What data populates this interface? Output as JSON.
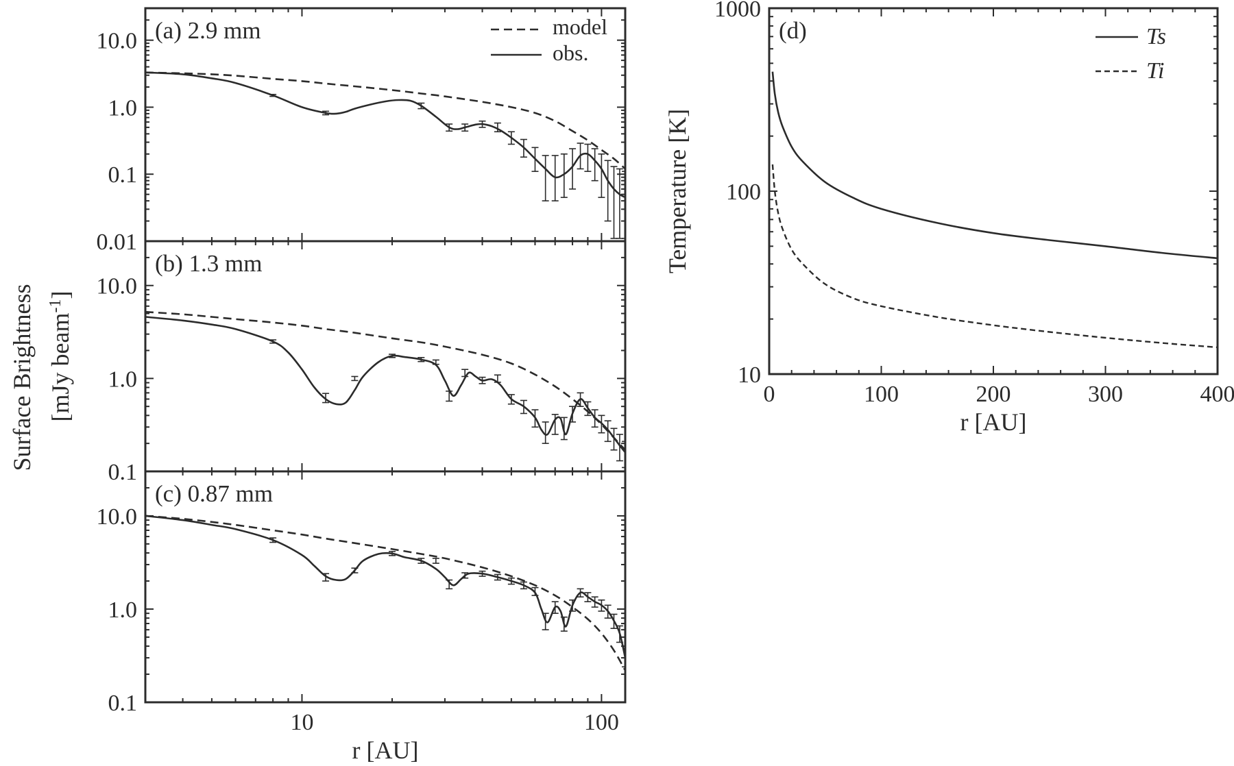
{
  "chart_data": [
    {
      "type": "line",
      "panel_label": "(a) 2.9 mm",
      "xscale": "log",
      "yscale": "log",
      "xlim": [
        3,
        120
      ],
      "ylim": [
        0.01,
        30
      ],
      "ytick_labels": [
        "10.0",
        "1.0",
        "0.1",
        "0.01"
      ],
      "ytick_values": [
        10,
        1,
        0.1,
        0.01
      ],
      "legend": {
        "position": "top-right",
        "entries": [
          "model",
          "obs."
        ]
      },
      "series": [
        {
          "name": "model",
          "style": "dashed",
          "x": [
            3,
            4,
            5,
            6,
            8,
            10,
            12,
            15,
            20,
            25,
            30,
            40,
            50,
            60,
            70,
            80,
            90,
            100,
            110,
            120
          ],
          "y": [
            3.3,
            3.2,
            3.1,
            2.95,
            2.65,
            2.45,
            2.25,
            2.05,
            1.8,
            1.6,
            1.45,
            1.2,
            1.0,
            0.82,
            0.62,
            0.44,
            0.32,
            0.23,
            0.17,
            0.12
          ]
        },
        {
          "name": "obs.",
          "style": "solid",
          "x": [
            3,
            4,
            5,
            6,
            8,
            10,
            12,
            13,
            14,
            15,
            17,
            19,
            21,
            23,
            25,
            28,
            31,
            33,
            35,
            38,
            40,
            43,
            46,
            50,
            55,
            60,
            65,
            70,
            75,
            80,
            85,
            90,
            95,
            100,
            105,
            110,
            115,
            120
          ],
          "y": [
            3.3,
            3.1,
            2.7,
            2.3,
            1.5,
            1.0,
            0.82,
            0.8,
            0.85,
            0.95,
            1.1,
            1.22,
            1.28,
            1.25,
            1.05,
            0.72,
            0.5,
            0.47,
            0.5,
            0.55,
            0.56,
            0.52,
            0.45,
            0.35,
            0.25,
            0.17,
            0.12,
            0.09,
            0.1,
            0.13,
            0.19,
            0.2,
            0.16,
            0.12,
            0.08,
            0.06,
            0.05,
            0.045
          ],
          "error_x": [
            8,
            12,
            25,
            31,
            35,
            40,
            45,
            50,
            55,
            60,
            65,
            70,
            75,
            80,
            85,
            90,
            95,
            100,
            105,
            110,
            115,
            120
          ],
          "error_y": [
            1.5,
            0.82,
            1.05,
            0.5,
            0.5,
            0.56,
            0.5,
            0.35,
            0.25,
            0.17,
            0.1,
            0.1,
            0.11,
            0.14,
            0.2,
            0.19,
            0.15,
            0.11,
            0.07,
            0.05,
            0.05,
            0.045
          ],
          "error_lo": [
            1.45,
            0.77,
            0.95,
            0.44,
            0.44,
            0.5,
            0.43,
            0.28,
            0.18,
            0.11,
            0.04,
            0.04,
            0.045,
            0.06,
            0.12,
            0.11,
            0.08,
            0.045,
            0.02,
            0.011,
            0.011,
            0.011
          ],
          "error_hi": [
            1.55,
            0.87,
            1.15,
            0.56,
            0.56,
            0.62,
            0.58,
            0.43,
            0.33,
            0.25,
            0.19,
            0.19,
            0.2,
            0.24,
            0.29,
            0.28,
            0.24,
            0.2,
            0.16,
            0.13,
            0.12,
            0.11
          ]
        }
      ]
    },
    {
      "type": "line",
      "panel_label": "(b) 1.3 mm",
      "xscale": "log",
      "yscale": "log",
      "xlim": [
        3,
        120
      ],
      "ylim": [
        0.1,
        30
      ],
      "ytick_labels": [
        "10.0",
        "1.0",
        "0.1"
      ],
      "ytick_values": [
        10,
        1,
        0.1
      ],
      "series": [
        {
          "name": "model",
          "style": "dashed",
          "x": [
            3,
            4,
            5,
            6,
            8,
            10,
            12,
            15,
            20,
            25,
            30,
            40,
            50,
            60,
            70,
            80,
            90,
            100,
            110,
            120
          ],
          "y": [
            5.2,
            4.9,
            4.6,
            4.35,
            4.0,
            3.7,
            3.4,
            3.1,
            2.7,
            2.45,
            2.2,
            1.8,
            1.45,
            1.1,
            0.82,
            0.6,
            0.44,
            0.32,
            0.23,
            0.17
          ]
        },
        {
          "name": "obs.",
          "style": "solid",
          "x": [
            3,
            4,
            5,
            6,
            8,
            9,
            10,
            11,
            12,
            13,
            14,
            15,
            16,
            18,
            20,
            22,
            25,
            28,
            30,
            32,
            34,
            36,
            38,
            40,
            43,
            46,
            50,
            55,
            60,
            63,
            66,
            70,
            73,
            76,
            80,
            85,
            90,
            95,
            100,
            105,
            110,
            115,
            120
          ],
          "y": [
            4.6,
            4.2,
            3.8,
            3.4,
            2.5,
            1.9,
            1.25,
            0.8,
            0.6,
            0.53,
            0.55,
            0.75,
            1.05,
            1.5,
            1.75,
            1.7,
            1.6,
            1.4,
            0.95,
            0.65,
            0.85,
            1.15,
            1.05,
            0.95,
            0.98,
            0.85,
            0.6,
            0.5,
            0.38,
            0.28,
            0.25,
            0.36,
            0.37,
            0.25,
            0.42,
            0.6,
            0.48,
            0.38,
            0.33,
            0.28,
            0.23,
            0.19,
            0.16
          ],
          "error_x": [
            8,
            12,
            15,
            20,
            25,
            28,
            31,
            35,
            40,
            45,
            50,
            55,
            60,
            65,
            70,
            75,
            80,
            85,
            90,
            95,
            100,
            105,
            110,
            115,
            120
          ],
          "error_y": [
            2.5,
            0.62,
            1.0,
            1.75,
            1.6,
            1.5,
            0.65,
            1.15,
            0.95,
            1.0,
            0.6,
            0.5,
            0.38,
            0.27,
            0.33,
            0.3,
            0.42,
            0.6,
            0.48,
            0.38,
            0.33,
            0.28,
            0.23,
            0.19,
            0.16
          ],
          "error_lo": [
            2.4,
            0.55,
            0.95,
            1.68,
            1.52,
            1.42,
            0.57,
            1.05,
            0.88,
            0.91,
            0.53,
            0.42,
            0.3,
            0.2,
            0.25,
            0.22,
            0.34,
            0.5,
            0.4,
            0.3,
            0.26,
            0.21,
            0.17,
            0.13,
            0.11
          ],
          "error_hi": [
            2.6,
            0.69,
            1.05,
            1.82,
            1.68,
            1.58,
            0.73,
            1.25,
            1.03,
            1.09,
            0.67,
            0.58,
            0.46,
            0.34,
            0.41,
            0.38,
            0.5,
            0.7,
            0.56,
            0.46,
            0.4,
            0.35,
            0.29,
            0.25,
            0.21
          ]
        }
      ]
    },
    {
      "type": "line",
      "panel_label": "(c) 0.87 mm",
      "xscale": "log",
      "yscale": "log",
      "xlim": [
        3,
        120
      ],
      "ylim": [
        0.1,
        30
      ],
      "xtick_labels": [
        "10",
        "100"
      ],
      "xtick_values": [
        10,
        100
      ],
      "ytick_labels": [
        "10.0",
        "1.0",
        "0.1"
      ],
      "ytick_values": [
        10,
        1,
        0.1
      ],
      "xlabel": "r [AU]",
      "series": [
        {
          "name": "model",
          "style": "dashed",
          "x": [
            3,
            4,
            5,
            6,
            8,
            10,
            12,
            15,
            20,
            25,
            30,
            40,
            50,
            60,
            70,
            80,
            90,
            100,
            110,
            120
          ],
          "y": [
            10.0,
            9.3,
            8.6,
            8.0,
            7.0,
            6.3,
            5.7,
            5.1,
            4.4,
            3.9,
            3.5,
            2.8,
            2.25,
            1.8,
            1.4,
            1.05,
            0.78,
            0.55,
            0.36,
            0.22
          ]
        },
        {
          "name": "obs.",
          "style": "solid",
          "x": [
            3,
            4,
            5,
            6,
            8,
            10,
            11,
            12,
            13,
            14,
            15,
            16,
            18,
            20,
            22,
            25,
            28,
            30,
            32,
            34,
            36,
            40,
            45,
            50,
            55,
            60,
            63,
            66,
            70,
            73,
            76,
            80,
            85,
            90,
            95,
            100,
            105,
            110,
            115,
            120
          ],
          "y": [
            10.0,
            9.0,
            8.0,
            7.2,
            5.5,
            3.8,
            2.9,
            2.25,
            2.05,
            2.1,
            2.6,
            3.3,
            3.9,
            3.95,
            3.6,
            3.3,
            2.7,
            2.2,
            1.8,
            2.1,
            2.4,
            2.4,
            2.2,
            2.0,
            1.8,
            1.5,
            1.0,
            0.72,
            1.05,
            0.95,
            0.65,
            1.1,
            1.5,
            1.35,
            1.2,
            1.1,
            0.95,
            0.75,
            0.55,
            0.3
          ],
          "error_x": [
            8,
            12,
            15,
            20,
            25,
            28,
            31,
            35,
            40,
            45,
            50,
            55,
            60,
            65,
            70,
            75,
            80,
            85,
            90,
            95,
            100,
            105,
            110,
            115,
            120
          ],
          "error_y": [
            5.5,
            2.2,
            2.6,
            3.95,
            3.3,
            3.3,
            1.85,
            2.3,
            2.4,
            2.2,
            2.0,
            1.8,
            1.55,
            0.75,
            1.05,
            0.7,
            1.1,
            1.5,
            1.35,
            1.2,
            1.1,
            0.95,
            0.75,
            0.55,
            0.32
          ],
          "error_lo": [
            5.2,
            2.0,
            2.45,
            3.75,
            3.1,
            3.1,
            1.65,
            2.15,
            2.25,
            2.05,
            1.85,
            1.65,
            1.4,
            0.6,
            0.9,
            0.58,
            0.95,
            1.35,
            1.2,
            1.05,
            0.95,
            0.8,
            0.62,
            0.44,
            0.24
          ],
          "error_hi": [
            5.8,
            2.4,
            2.75,
            4.15,
            3.5,
            3.5,
            2.05,
            2.45,
            2.55,
            2.35,
            2.15,
            1.95,
            1.7,
            0.9,
            1.2,
            0.82,
            1.25,
            1.65,
            1.5,
            1.35,
            1.25,
            1.1,
            0.88,
            0.66,
            0.4
          ]
        }
      ]
    },
    {
      "type": "line",
      "panel_label": "(d)",
      "xscale": "linear",
      "yscale": "log",
      "xlim": [
        0,
        400
      ],
      "ylim": [
        10,
        1000
      ],
      "xtick_labels": [
        "0",
        "100",
        "200",
        "300",
        "400"
      ],
      "xtick_values": [
        0,
        100,
        200,
        300,
        400
      ],
      "ytick_labels": [
        "1000",
        "100",
        "10"
      ],
      "ytick_values": [
        1000,
        100,
        10
      ],
      "xlabel": "r [AU]",
      "ylabel": "Temperature [K]",
      "legend": {
        "position": "top-right",
        "entries": [
          "Ts",
          "Ti"
        ]
      },
      "series": [
        {
          "name": "Ts",
          "style": "solid",
          "x": [
            3,
            5,
            8,
            12,
            20,
            30,
            50,
            75,
            100,
            150,
            200,
            250,
            300,
            350,
            400
          ],
          "y": [
            450,
            340,
            270,
            225,
            175,
            145,
            112,
            92,
            80,
            67,
            59,
            54,
            50,
            46,
            43
          ]
        },
        {
          "name": "Ti",
          "style": "dashed",
          "x": [
            3,
            5,
            8,
            12,
            20,
            30,
            50,
            75,
            100,
            150,
            200,
            250,
            300,
            350,
            400
          ],
          "y": [
            140,
            100,
            76,
            62,
            48,
            40,
            31,
            26,
            23.5,
            20.5,
            18.5,
            17,
            15.8,
            14.8,
            14
          ]
        }
      ]
    }
  ],
  "shared_ylabel": [
    "Surface Brightness",
    "[mJy beam",
    "-1",
    "]"
  ]
}
